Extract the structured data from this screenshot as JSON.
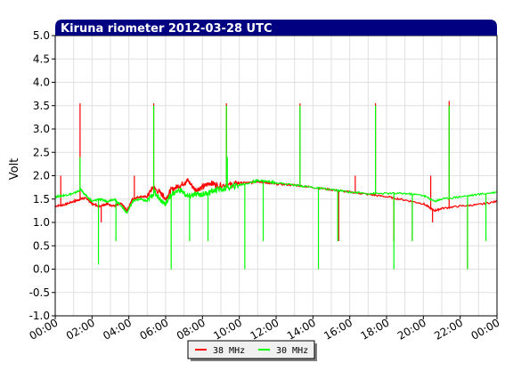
{
  "chart_data": {
    "type": "line",
    "title": "Kiruna riometer 2012-03-28 UTC",
    "xlabel": "",
    "ylabel": "Volt",
    "xlim": [
      0,
      24
    ],
    "ylim": [
      -1.0,
      5.0
    ],
    "x_ticks": [
      "00:00",
      "02:00",
      "04:00",
      "06:00",
      "08:00",
      "10:00",
      "12:00",
      "14:00",
      "16:00",
      "18:00",
      "20:00",
      "22:00",
      "00:00"
    ],
    "y_ticks": [
      "5.0",
      "4.5",
      "4.0",
      "3.5",
      "3.0",
      "2.5",
      "2.0",
      "1.5",
      "1.0",
      "0.5",
      "0.0",
      "-0.5",
      "-1.0"
    ],
    "grid": true,
    "legend_position": "bottom-center",
    "series": [
      {
        "name": "38 MHz",
        "color": "#ff0000",
        "points": [
          [
            0,
            1.35
          ],
          [
            0.5,
            1.38
          ],
          [
            1.0,
            1.45
          ],
          [
            1.4,
            1.5
          ],
          [
            1.7,
            1.52
          ],
          [
            2.0,
            1.4
          ],
          [
            2.4,
            1.35
          ],
          [
            2.8,
            1.4
          ],
          [
            3.2,
            1.35
          ],
          [
            3.6,
            1.4
          ],
          [
            3.9,
            1.25
          ],
          [
            4.2,
            1.5
          ],
          [
            4.6,
            1.55
          ],
          [
            5.0,
            1.55
          ],
          [
            5.3,
            1.75
          ],
          [
            5.8,
            1.6
          ],
          [
            6.0,
            1.5
          ],
          [
            6.3,
            1.7
          ],
          [
            6.8,
            1.8
          ],
          [
            7.2,
            1.9
          ],
          [
            7.6,
            1.7
          ],
          [
            8.0,
            1.75
          ],
          [
            8.4,
            1.85
          ],
          [
            8.8,
            1.8
          ],
          [
            9.5,
            1.8
          ],
          [
            10.0,
            1.85
          ],
          [
            10.6,
            1.85
          ],
          [
            11.0,
            1.88
          ],
          [
            11.5,
            1.85
          ],
          [
            12.0,
            1.82
          ],
          [
            13.0,
            1.8
          ],
          [
            14.0,
            1.75
          ],
          [
            15.0,
            1.7
          ],
          [
            16.0,
            1.65
          ],
          [
            17.0,
            1.6
          ],
          [
            18.0,
            1.55
          ],
          [
            19.0,
            1.48
          ],
          [
            20.0,
            1.4
          ],
          [
            20.6,
            1.25
          ],
          [
            21.0,
            1.3
          ],
          [
            22.0,
            1.35
          ],
          [
            23.0,
            1.38
          ],
          [
            24.0,
            1.45
          ]
        ],
        "spikes": [
          [
            0.3,
            2.0
          ],
          [
            1.35,
            3.55
          ],
          [
            2.5,
            1.0
          ],
          [
            4.3,
            2.0
          ],
          [
            5.35,
            3.55
          ],
          [
            9.3,
            3.55
          ],
          [
            13.3,
            3.55
          ],
          [
            15.4,
            0.6
          ],
          [
            16.3,
            2.0
          ],
          [
            17.4,
            3.55
          ],
          [
            18.4,
            0.6
          ],
          [
            19.4,
            0.6
          ],
          [
            20.4,
            2.0
          ],
          [
            20.5,
            1.0
          ],
          [
            21.4,
            3.6
          ],
          [
            22.4,
            0.0
          ]
        ]
      },
      {
        "name": "30 MHz",
        "color": "#00ff00",
        "points": [
          [
            0,
            1.55
          ],
          [
            0.5,
            1.58
          ],
          [
            1.0,
            1.62
          ],
          [
            1.4,
            1.7
          ],
          [
            1.6,
            1.6
          ],
          [
            2.0,
            1.45
          ],
          [
            2.4,
            1.5
          ],
          [
            2.8,
            1.45
          ],
          [
            3.2,
            1.5
          ],
          [
            3.6,
            1.35
          ],
          [
            3.9,
            1.2
          ],
          [
            4.2,
            1.45
          ],
          [
            4.6,
            1.5
          ],
          [
            5.0,
            1.45
          ],
          [
            5.4,
            1.65
          ],
          [
            5.8,
            1.45
          ],
          [
            6.0,
            1.4
          ],
          [
            6.3,
            1.6
          ],
          [
            6.8,
            1.7
          ],
          [
            7.2,
            1.55
          ],
          [
            7.6,
            1.6
          ],
          [
            8.0,
            1.6
          ],
          [
            8.4,
            1.65
          ],
          [
            8.8,
            1.7
          ],
          [
            9.5,
            1.75
          ],
          [
            10.0,
            1.8
          ],
          [
            10.6,
            1.85
          ],
          [
            11.0,
            1.9
          ],
          [
            11.5,
            1.88
          ],
          [
            12.0,
            1.85
          ],
          [
            13.0,
            1.8
          ],
          [
            14.0,
            1.75
          ],
          [
            15.0,
            1.7
          ],
          [
            16.0,
            1.65
          ],
          [
            17.0,
            1.62
          ],
          [
            18.0,
            1.62
          ],
          [
            19.0,
            1.62
          ],
          [
            20.0,
            1.58
          ],
          [
            20.6,
            1.45
          ],
          [
            21.0,
            1.5
          ],
          [
            22.0,
            1.55
          ],
          [
            23.0,
            1.6
          ],
          [
            24.0,
            1.65
          ]
        ],
        "spikes": [
          [
            1.35,
            2.4
          ],
          [
            2.35,
            0.1
          ],
          [
            3.3,
            0.6
          ],
          [
            5.35,
            3.5
          ],
          [
            6.3,
            0.0
          ],
          [
            7.3,
            0.6
          ],
          [
            8.3,
            0.6
          ],
          [
            9.3,
            3.5
          ],
          [
            9.35,
            2.4
          ],
          [
            10.3,
            0.0
          ],
          [
            11.3,
            0.6
          ],
          [
            13.3,
            3.5
          ],
          [
            14.3,
            0.0
          ],
          [
            15.35,
            0.6
          ],
          [
            17.4,
            3.5
          ],
          [
            18.4,
            0.0
          ],
          [
            19.4,
            0.6
          ],
          [
            21.4,
            3.5
          ],
          [
            22.4,
            0.0
          ],
          [
            23.4,
            0.6
          ]
        ]
      }
    ]
  }
}
